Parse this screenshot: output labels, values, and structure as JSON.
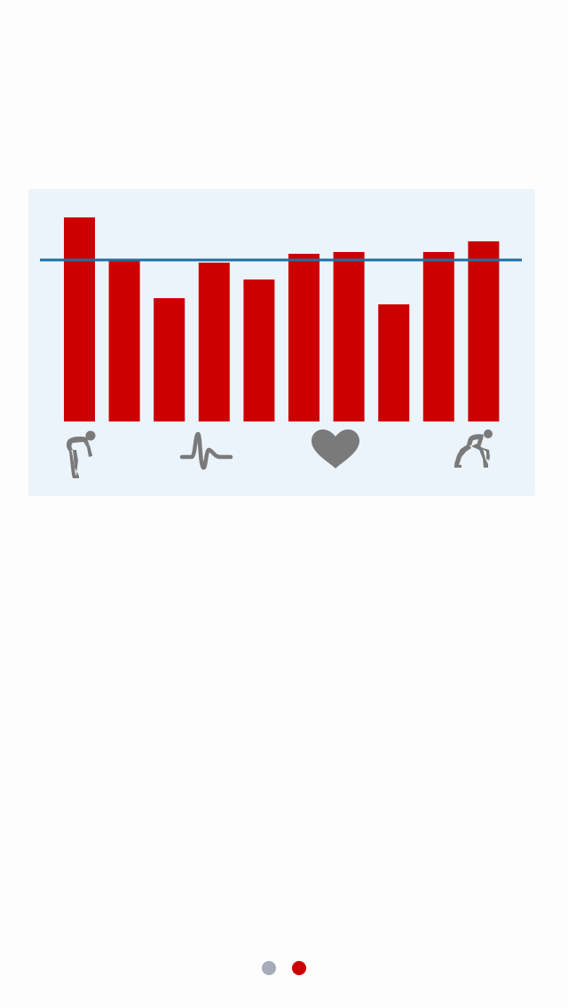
{
  "colors": {
    "background": "#fdfdfd",
    "card": "#ecf4fb",
    "bar": "#cc0000",
    "reference_line": "#1f6fa3",
    "icon": "#7a7a7a",
    "dot_inactive": "#a5acb8",
    "dot_active": "#cc0000"
  },
  "chart_data": {
    "type": "bar",
    "categories": [
      "",
      "",
      "",
      "",
      "",
      "",
      "",
      "",
      "",
      ""
    ],
    "values": [
      230,
      181,
      139,
      179,
      160,
      189,
      191,
      132,
      191,
      203
    ],
    "reference_line": 182,
    "ylim": [
      0,
      250
    ],
    "grid": false,
    "legend": "none"
  },
  "icons": [
    "tired-runner-icon",
    "heartbeat-pulse-icon",
    "heart-icon",
    "sprinter-start-icon"
  ],
  "pager": {
    "count": 2,
    "active_index": 1
  }
}
